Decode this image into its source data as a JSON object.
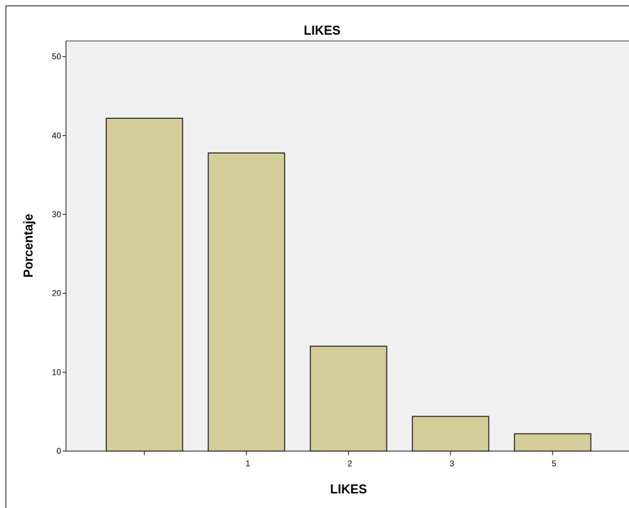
{
  "chart_data": {
    "type": "bar",
    "title": "LIKES",
    "xlabel": "LIKES",
    "ylabel": "Porcentaje",
    "categories": [
      "",
      "1",
      "2",
      "3",
      "5"
    ],
    "values": [
      42.2,
      37.8,
      13.3,
      4.4,
      2.2
    ],
    "ylim": [
      0,
      52
    ],
    "yticks": [
      0,
      10,
      20,
      30,
      40,
      50
    ],
    "ytick_labels": [
      "0",
      "10",
      "20",
      "30",
      "40",
      "50"
    ],
    "grid": false,
    "colors": {
      "bar_fill": "#d4cd99",
      "bar_stroke": "#000000",
      "plot_background": "#f0f0f0"
    }
  }
}
